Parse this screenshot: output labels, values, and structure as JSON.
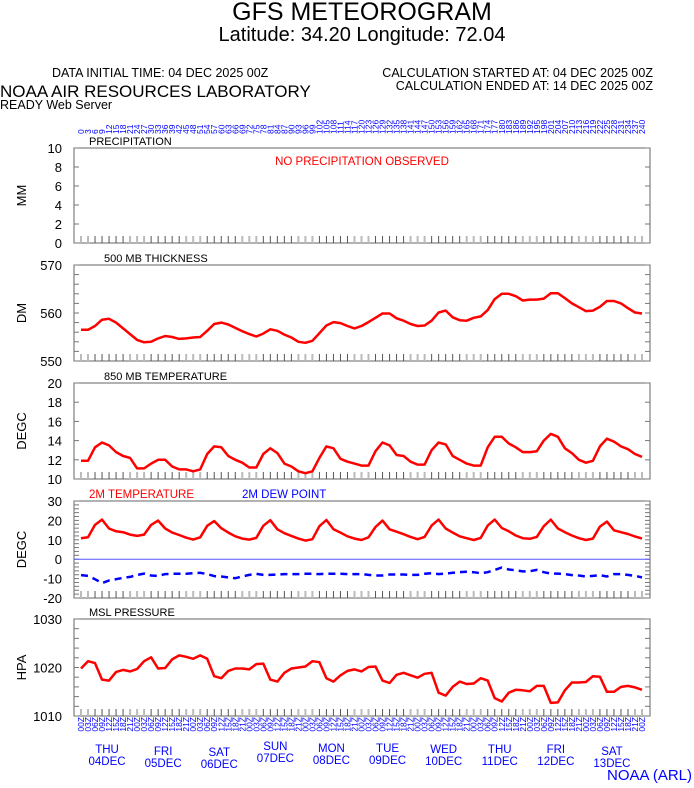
{
  "header": {
    "title": "GFS METEOROGRAM",
    "subtitle": "Latitude: 34.20 Longitude:  72.04",
    "data_initial_time": "DATA INITIAL TIME: 04 DEC 2025 00Z",
    "calculation_started": "CALCULATION STARTED AT: 04 DEC 2025 00Z",
    "calculation_ended": "CALCULATION ENDED AT: 14 DEC 2025 00Z",
    "organization": "NOAA AIR RESOURCES LABORATORY",
    "server": "READY Web Server",
    "credit": "NOAA (ARL)"
  },
  "colors": {
    "primary": "#ff0000",
    "secondary": "#0000ff",
    "axis_labels": "#0000ff"
  },
  "x_axis": {
    "forecast_hours": [
      0,
      3,
      6,
      9,
      12,
      15,
      18,
      21,
      24,
      27,
      30,
      33,
      36,
      39,
      42,
      45,
      48,
      51,
      54,
      57,
      60,
      63,
      66,
      69,
      72,
      75,
      78,
      81,
      84,
      87,
      90,
      93,
      96,
      99,
      102,
      105,
      108,
      111,
      114,
      117,
      120,
      123,
      126,
      129,
      132,
      135,
      138,
      141,
      144,
      147,
      150,
      153,
      156,
      159,
      162,
      165,
      168,
      171,
      174,
      177,
      180,
      183,
      186,
      189,
      192,
      195,
      198,
      201,
      204,
      207,
      210,
      213,
      216,
      219,
      222,
      225,
      228,
      231,
      234,
      237,
      240
    ],
    "utc_hours": [
      "00Z",
      "03Z",
      "06Z",
      "09Z",
      "12Z",
      "15Z",
      "18Z",
      "21Z"
    ],
    "days": [
      {
        "day": "THU",
        "date": "04DEC"
      },
      {
        "day": "FRI",
        "date": "05DEC"
      },
      {
        "day": "SAT",
        "date": "06DEC"
      },
      {
        "day": "SUN",
        "date": "07DEC"
      },
      {
        "day": "MON",
        "date": "08DEC"
      },
      {
        "day": "TUE",
        "date": "09DEC"
      },
      {
        "day": "WED",
        "date": "10DEC"
      },
      {
        "day": "THU",
        "date": "11DEC"
      },
      {
        "day": "FRI",
        "date": "12DEC"
      },
      {
        "day": "SAT",
        "date": "13DEC"
      }
    ]
  },
  "chart_data": [
    {
      "type": "line",
      "title": "PRECIPITATION",
      "ylabel": "MM",
      "ylim": [
        0,
        10
      ],
      "yticks": [
        0,
        2,
        4,
        6,
        8,
        10
      ],
      "annotation": "NO PRECIPITATION OBSERVED",
      "series": []
    },
    {
      "type": "line",
      "title": "500 MB  THICKNESS",
      "ylabel": "DM",
      "ylim": [
        550,
        570
      ],
      "yticks": [
        550,
        560,
        570
      ],
      "series": [
        {
          "values": [
            556.5,
            556.5,
            557.3,
            558.6,
            558.8,
            558,
            556.8,
            555.6,
            554.4,
            553.9,
            554,
            554.7,
            555.2,
            555,
            554.6,
            554.7,
            554.9,
            555,
            556.3,
            557.7,
            558,
            557.6,
            556.9,
            556.2,
            555.6,
            555.1,
            555.7,
            556.6,
            556.3,
            555.5,
            554.9,
            554,
            553.8,
            554.2,
            555.8,
            557.4,
            558.1,
            557.9,
            557.3,
            556.8,
            557.3,
            558.1,
            559,
            559.9,
            559.9,
            558.9,
            558.4,
            557.7,
            557.3,
            557.4,
            558.4,
            560.1,
            560.5,
            559.1,
            558.5,
            558.4,
            559,
            559.3,
            560.6,
            562.9,
            564,
            564,
            563.5,
            562.6,
            562.8,
            562.8,
            563,
            564.1,
            564.1,
            563.1,
            562,
            561.2,
            560.4,
            560.5,
            561.3,
            562.5,
            562.5,
            562,
            561,
            560.1,
            559.9
          ]
        }
      ]
    },
    {
      "type": "line",
      "title": "850 MB  TEMPERATURE",
      "ylabel": "DEGC",
      "ylim": [
        10,
        20
      ],
      "yticks": [
        10,
        12,
        14,
        16,
        18,
        20
      ],
      "series": [
        {
          "values": [
            11.9,
            11.9,
            13.3,
            13.8,
            13.5,
            12.8,
            12.4,
            12.2,
            11.1,
            11.1,
            11.6,
            12,
            12,
            11.3,
            11,
            11,
            10.8,
            11,
            12.6,
            13.4,
            13.3,
            12.4,
            12,
            11.7,
            11.2,
            11.2,
            12.6,
            13.2,
            12.7,
            11.6,
            11.3,
            10.8,
            10.6,
            10.8,
            12.2,
            13.4,
            13.2,
            12.1,
            11.8,
            11.6,
            11.4,
            11.4,
            12.9,
            13.8,
            13.5,
            12.5,
            12.4,
            11.8,
            11.5,
            11.5,
            13,
            13.8,
            13.6,
            12.4,
            12,
            11.6,
            11.4,
            11.4,
            13.3,
            14.4,
            14.4,
            13.7,
            13.3,
            12.8,
            12.8,
            12.9,
            14,
            14.7,
            14.4,
            13.2,
            12.7,
            12,
            11.7,
            11.9,
            13.4,
            14.2,
            13.9,
            13.4,
            13.1,
            12.6,
            12.3
          ]
        }
      ]
    },
    {
      "type": "line",
      "title": "",
      "ylabel": "DEGC",
      "ylim": [
        -20,
        30
      ],
      "yticks": [
        -20,
        -10,
        0,
        10,
        20,
        30
      ],
      "series": [
        {
          "name": "2M TEMPERATURE",
          "values": [
            10.8,
            11.3,
            17.7,
            20.4,
            15.8,
            14.4,
            13.9,
            12.7,
            12,
            12.7,
            17.7,
            19.9,
            15.8,
            13.7,
            12.5,
            11.1,
            10.1,
            11.3,
            17.2,
            19.7,
            16,
            13.7,
            11.8,
            10.6,
            10.1,
            11,
            17.2,
            20.1,
            15.4,
            13.4,
            12,
            10.6,
            9.6,
            10.3,
            17,
            20.2,
            15.4,
            13.7,
            11.8,
            10.6,
            9.9,
            11.3,
            16.6,
            19.9,
            15.4,
            14.2,
            12.9,
            11.5,
            10.3,
            11.5,
            17.3,
            20.4,
            15.8,
            13.7,
            11.8,
            10.8,
            9.9,
            11,
            17.3,
            20.4,
            16.1,
            14.4,
            12.2,
            10.8,
            10.5,
            11.5,
            17,
            20.4,
            15.8,
            13.9,
            12.2,
            10.8,
            9.9,
            10.6,
            16.8,
            19.4,
            14.9,
            13.9,
            13,
            11.7,
            10.6
          ]
        },
        {
          "name": "2M   DEW POINT",
          "values": [
            -8.2,
            -8.6,
            -10.3,
            -12.3,
            -11,
            -10.3,
            -9.6,
            -9.1,
            -8.1,
            -7.4,
            -8.4,
            -8.6,
            -7.7,
            -7.5,
            -7.5,
            -7.5,
            -7.2,
            -7,
            -7.7,
            -8.7,
            -8.9,
            -9.4,
            -9.8,
            -8.9,
            -8.1,
            -7.5,
            -8.1,
            -8.1,
            -7.9,
            -7.7,
            -7.7,
            -7.7,
            -7.5,
            -7.5,
            -7.7,
            -7.5,
            -7.5,
            -7.5,
            -7.7,
            -7.7,
            -7.7,
            -8.1,
            -8.4,
            -8.4,
            -7.9,
            -7.9,
            -7.9,
            -8.1,
            -8.1,
            -7.5,
            -7.2,
            -7.7,
            -7.4,
            -7,
            -6.7,
            -6.5,
            -6.7,
            -7.2,
            -6.7,
            -5.5,
            -4.3,
            -5.3,
            -5.7,
            -6.3,
            -6.2,
            -5.5,
            -6.7,
            -7.4,
            -7.4,
            -7.7,
            -8.2,
            -8.4,
            -8.9,
            -8.6,
            -8.2,
            -8.9,
            -7.7,
            -7.7,
            -8.1,
            -8.6,
            -9.4
          ]
        }
      ]
    },
    {
      "type": "line",
      "title": "MSL PRESSURE",
      "ylabel": "HPA",
      "ylim": [
        1010,
        1030
      ],
      "yticks": [
        1010,
        1020,
        1030
      ],
      "series": [
        {
          "values": [
            1019.8,
            1021.3,
            1020.9,
            1017.5,
            1017.3,
            1019.1,
            1019.5,
            1019.2,
            1019.7,
            1021.3,
            1022.1,
            1019.8,
            1019.9,
            1021.7,
            1022.5,
            1022.2,
            1021.8,
            1022.5,
            1021.8,
            1018.2,
            1017.8,
            1019.3,
            1019.8,
            1019.8,
            1019.6,
            1020.7,
            1020.8,
            1017.5,
            1017.1,
            1018.9,
            1019.8,
            1020,
            1020.2,
            1021.3,
            1021.1,
            1017.8,
            1017.1,
            1018.4,
            1019.3,
            1019.6,
            1019.2,
            1020.1,
            1020.2,
            1017.3,
            1016.8,
            1018.5,
            1018.9,
            1018.4,
            1017.9,
            1018.7,
            1018.9,
            1014.8,
            1014.2,
            1016,
            1017.1,
            1016.6,
            1016.7,
            1017.8,
            1017.3,
            1013.7,
            1013,
            1014.8,
            1015.4,
            1015.3,
            1015.1,
            1016.2,
            1016.2,
            1012.7,
            1012.8,
            1015.3,
            1016.9,
            1016.9,
            1017,
            1018.2,
            1018.1,
            1015,
            1015,
            1016,
            1016.2,
            1015.9,
            1015.4
          ]
        }
      ]
    }
  ]
}
